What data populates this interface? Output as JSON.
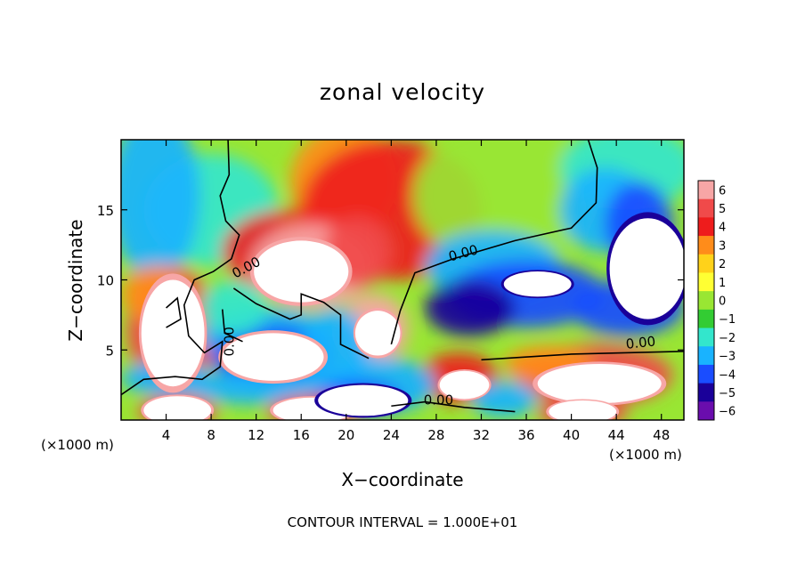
{
  "chart_data": {
    "type": "heatmap",
    "title": "zonal velocity",
    "xlabel": "X−coordinate",
    "ylabel": "Z−coordinate",
    "x_unit_left": "(×1000 m)",
    "x_unit_right": "(×1000 m)",
    "footer": "CONTOUR INTERVAL = 1.000E+01",
    "xlim": [
      0,
      50
    ],
    "ylim": [
      0,
      20
    ],
    "x_ticks": [
      4,
      8,
      12,
      16,
      20,
      24,
      28,
      32,
      36,
      40,
      44,
      48
    ],
    "y_ticks": [
      5,
      10,
      15
    ],
    "colorbar": {
      "levels": [
        6,
        5,
        4,
        3,
        2,
        1,
        0,
        -1,
        -2,
        -3,
        -4,
        -5,
        -6
      ],
      "colors": [
        "#f7a6a6",
        "#f04a4a",
        "#ee1c1c",
        "#ff8c1a",
        "#ffd21a",
        "#ffff33",
        "#99e633",
        "#33cc33",
        "#33e6cc",
        "#19b3ff",
        "#1a4dff",
        "#1a0099",
        "#6a0dad"
      ]
    },
    "contour_labels": [
      {
        "text": "0.00",
        "x": 10.0,
        "y": 5.6,
        "angle": -90
      },
      {
        "text": "0.00",
        "x": 11.3,
        "y": 10.6,
        "angle": -28
      },
      {
        "text": "0.00",
        "x": 30.5,
        "y": 11.6,
        "angle": -15
      },
      {
        "text": "0.00",
        "x": 46.2,
        "y": 5.2,
        "angle": -6
      },
      {
        "text": "0.00",
        "x": 28.2,
        "y": 1.1,
        "angle": 0
      }
    ],
    "features": [
      {
        "value": 7,
        "cx": 4.6,
        "cy": 6.2,
        "rx": 2.8,
        "ry": 3.8
      },
      {
        "value": 7,
        "cx": 16.0,
        "cy": 10.6,
        "rx": 4.2,
        "ry": 2.2
      },
      {
        "value": 7,
        "cx": 22.8,
        "cy": 6.2,
        "rx": 2.0,
        "ry": 1.6
      },
      {
        "value": 7,
        "cx": 13.5,
        "cy": 4.5,
        "rx": 4.5,
        "ry": 1.7
      },
      {
        "value": 7,
        "cx": 30.5,
        "cy": 2.5,
        "rx": 2.2,
        "ry": 1.0
      },
      {
        "value": 7,
        "cx": 42.5,
        "cy": 2.6,
        "rx": 5.5,
        "ry": 1.4
      },
      {
        "value": 7,
        "cx": 5.0,
        "cy": 0.7,
        "rx": 3.0,
        "ry": 1.0
      },
      {
        "value": 7,
        "cx": 17.0,
        "cy": 0.7,
        "rx": 3.5,
        "ry": 0.9
      },
      {
        "value": 7,
        "cx": 41.0,
        "cy": 0.6,
        "rx": 3.0,
        "ry": 0.8
      },
      {
        "value": -7,
        "cx": 46.8,
        "cy": 10.8,
        "rx": 3.4,
        "ry": 3.6
      },
      {
        "value": -7,
        "cx": 37.0,
        "cy": 9.7,
        "rx": 3.0,
        "ry": 0.9
      },
      {
        "value": -7,
        "cx": 21.5,
        "cy": 1.4,
        "rx": 4.0,
        "ry": 1.1
      }
    ]
  }
}
